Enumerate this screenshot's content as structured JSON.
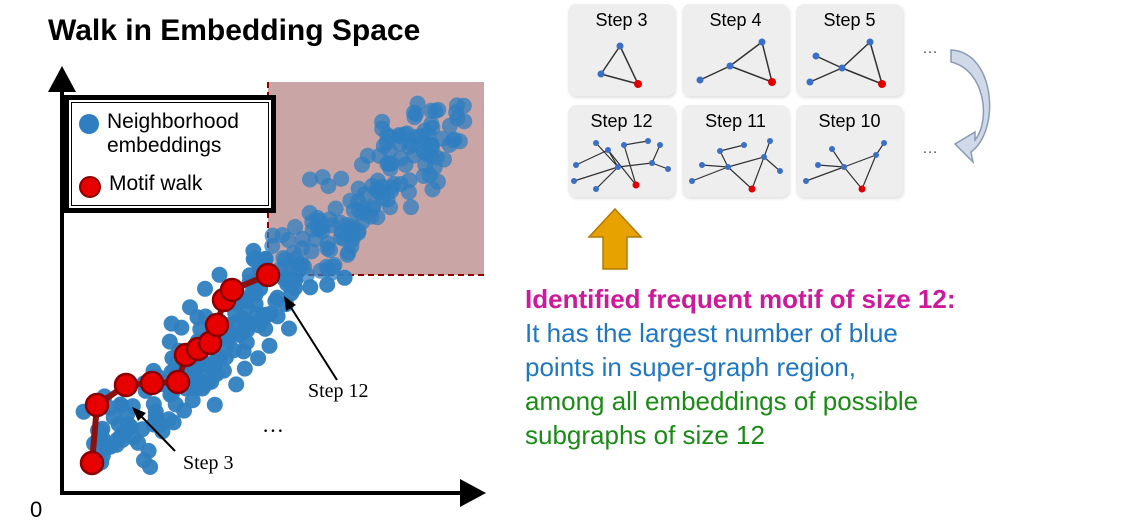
{
  "title": "Walk in Embedding Space",
  "legend": {
    "neighborhood_label": "Neighborhood\nembeddings",
    "motif_label": "Motif walk"
  },
  "plot": {
    "origin_label": "0",
    "step3_label": "Step 3",
    "step12_label": "Step 12",
    "ellipsis": "…",
    "colors": {
      "neighborhood": "#2f7fc0",
      "motif": "#e60000",
      "motif_edge": "#8a0000",
      "walk_line": "#8b1010",
      "region": "#c9a5a5",
      "region_border": "#8b0000"
    }
  },
  "cards_top": [
    {
      "label": "Step 3"
    },
    {
      "label": "Step 4"
    },
    {
      "label": "Step 5"
    }
  ],
  "cards_bottom": [
    {
      "label": "Step 12"
    },
    {
      "label": "Step 11"
    },
    {
      "label": "Step 10"
    }
  ],
  "row_ellipsis": "…",
  "description": {
    "title": "Identified frequent motif of size 12:",
    "line1": "It has the largest number of blue",
    "line2": "points in super-graph region,",
    "line3": "among all embeddings of possible",
    "line4": "subgraphs of size 12"
  },
  "colors": {
    "title_magenta": "#cc1a9a",
    "text_blue": "#1f77c2",
    "text_green": "#1b8a16",
    "up_arrow": "#e8a200",
    "curved_arrow": "#c8d3e4"
  }
}
